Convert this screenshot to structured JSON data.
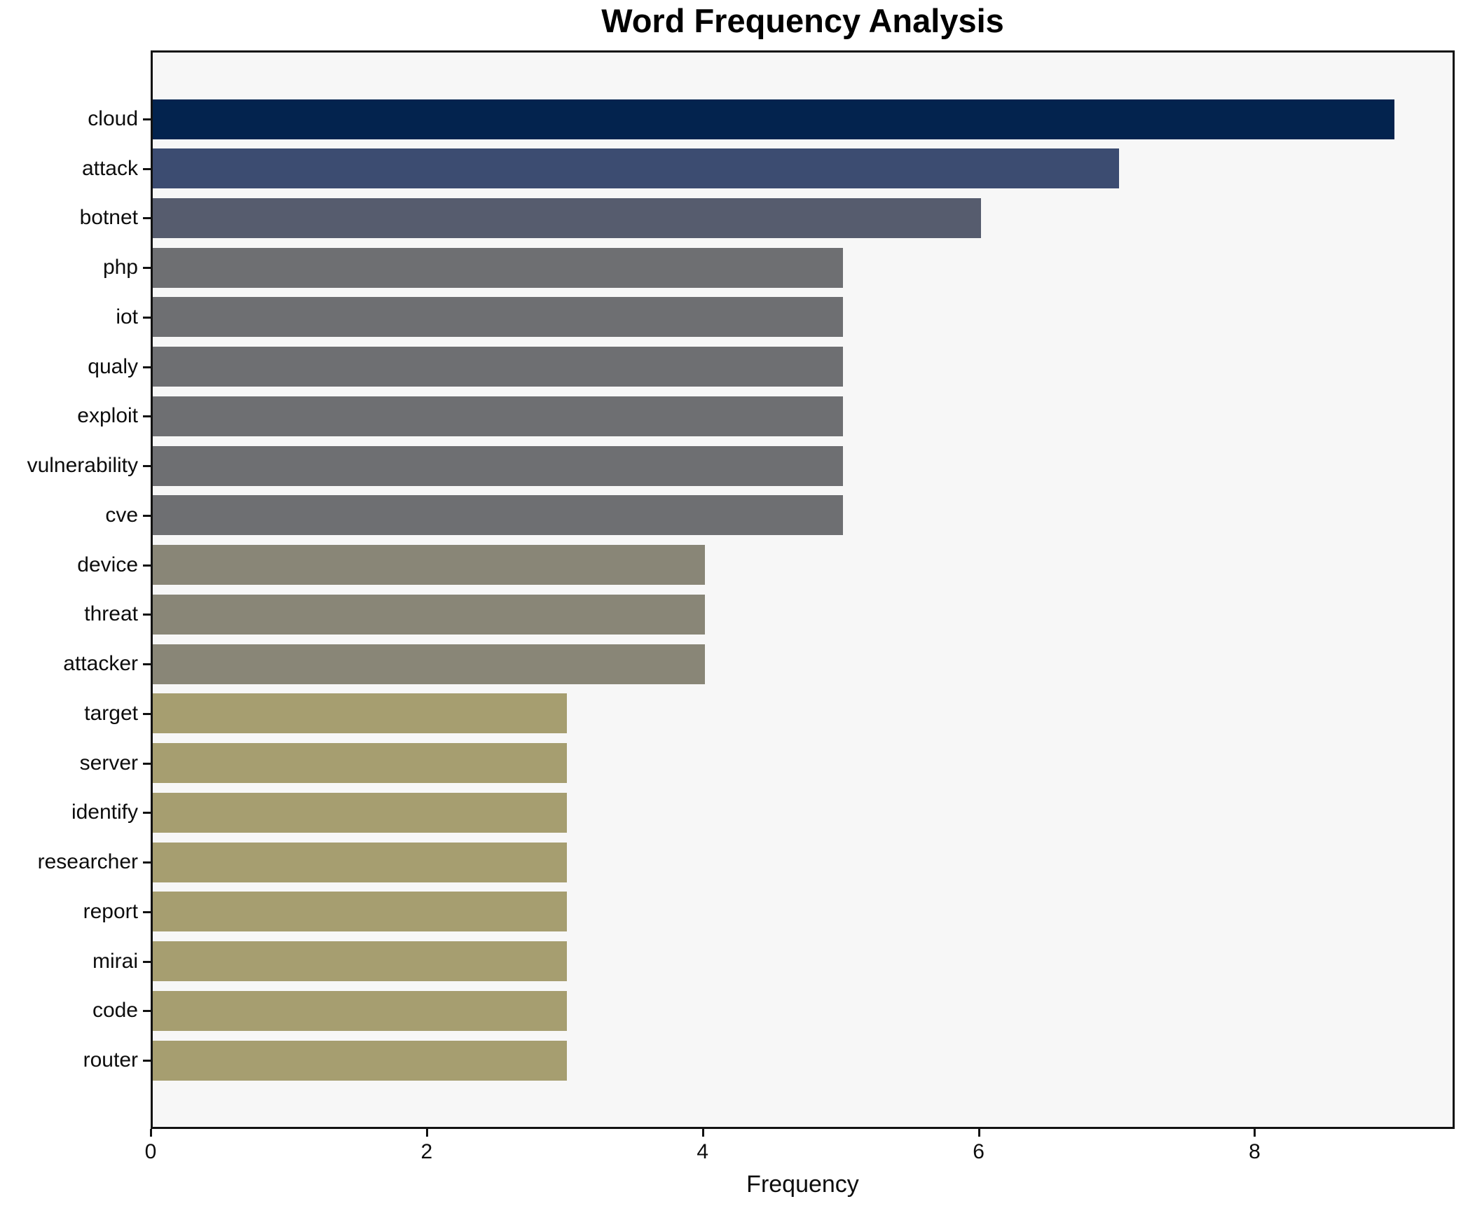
{
  "chart_data": {
    "type": "bar",
    "orientation": "horizontal",
    "title": "Word Frequency Analysis",
    "xlabel": "Frequency",
    "ylabel": "",
    "categories": [
      "cloud",
      "attack",
      "botnet",
      "php",
      "iot",
      "qualy",
      "exploit",
      "vulnerability",
      "cve",
      "device",
      "threat",
      "attacker",
      "target",
      "server",
      "identify",
      "researcher",
      "report",
      "mirai",
      "code",
      "router"
    ],
    "values": [
      9,
      7,
      6,
      5,
      5,
      5,
      5,
      5,
      5,
      4,
      4,
      4,
      3,
      3,
      3,
      3,
      3,
      3,
      3,
      3
    ],
    "x_ticks": [
      0,
      2,
      4,
      6,
      8
    ],
    "xlim": [
      0,
      9.45
    ],
    "grid": false,
    "legend": false,
    "bar_colors_by_value": {
      "9": "#03234e",
      "7": "#3c4c71",
      "6": "#565c6e",
      "5": "#6e6f72",
      "4": "#898677",
      "3": "#a69e70"
    },
    "plot_background": "#f7f7f7",
    "figure_background": "#ffffff",
    "spine_color": "#121212"
  }
}
